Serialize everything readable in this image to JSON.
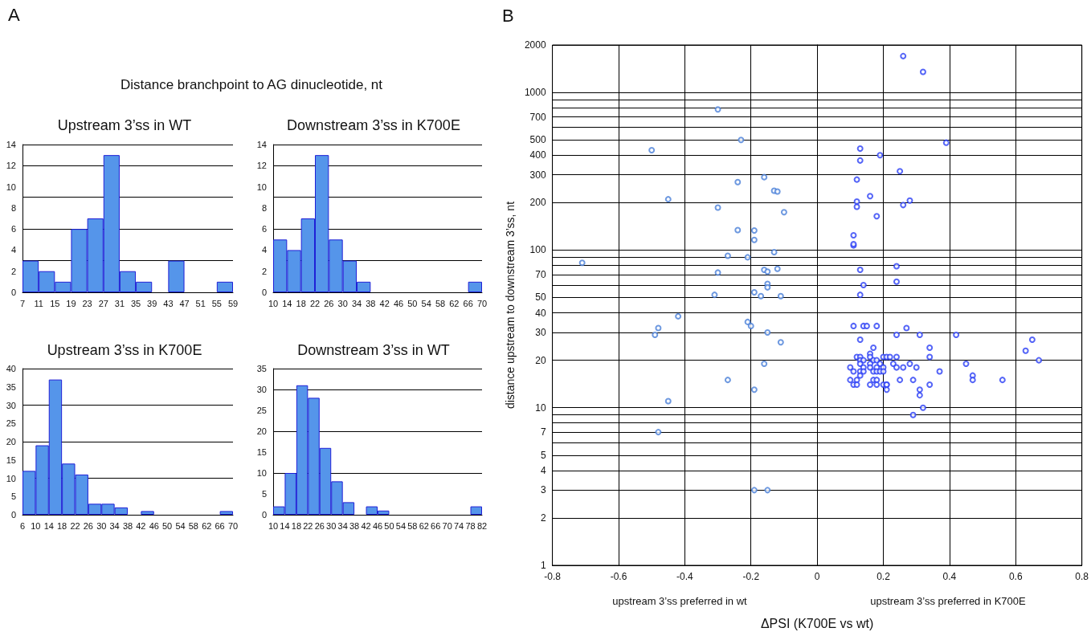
{
  "chart_data": [
    {
      "type": "histogram",
      "title": "Upstream 3’ss in WT",
      "annotations": [
        "A",
        "Distance branchpoint to AG dinucleotide, nt"
      ],
      "color": "#5595ea",
      "grid": "y",
      "bins": [
        7,
        11,
        15,
        19,
        23,
        27,
        31,
        35,
        39,
        43,
        47,
        51,
        55,
        59
      ],
      "values": [
        3,
        2,
        1,
        6,
        7,
        13,
        2,
        1,
        0,
        3,
        0,
        0,
        1
      ],
      "xlim": [
        7,
        59
      ],
      "xticks": [
        7,
        11,
        15,
        19,
        23,
        27,
        31,
        35,
        39,
        43,
        47,
        51,
        55,
        59
      ],
      "ylim": [
        0,
        14
      ],
      "yticks": [
        0,
        2,
        4,
        6,
        8,
        10,
        12,
        14
      ]
    },
    {
      "type": "histogram",
      "title": "Downstream 3’ss in K700E",
      "color": "#5595ea",
      "grid": "y",
      "bins": [
        10,
        14,
        18,
        22,
        26,
        30,
        34,
        38,
        42,
        46,
        50,
        54,
        58,
        62,
        66,
        70
      ],
      "values": [
        5,
        4,
        7,
        13,
        5,
        3,
        1,
        0,
        0,
        0,
        0,
        0,
        0,
        0,
        1
      ],
      "xlim": [
        10,
        70
      ],
      "xticks": [
        10,
        14,
        18,
        22,
        26,
        30,
        34,
        38,
        42,
        46,
        50,
        54,
        58,
        62,
        66,
        70
      ],
      "ylim": [
        0,
        14
      ],
      "yticks": [
        0,
        2,
        4,
        6,
        8,
        10,
        12,
        14
      ]
    },
    {
      "type": "histogram",
      "title": "Upstream 3’ss in K700E",
      "color": "#5595ea",
      "grid": "y",
      "bins": [
        6,
        10,
        14,
        18,
        22,
        26,
        30,
        34,
        38,
        42,
        46,
        50,
        54,
        58,
        62,
        66,
        70
      ],
      "values": [
        12,
        19,
        37,
        14,
        11,
        3,
        3,
        2,
        0,
        1,
        0,
        0,
        0,
        0,
        0,
        1
      ],
      "xlim": [
        6,
        70
      ],
      "xticks": [
        6,
        10,
        14,
        18,
        22,
        26,
        30,
        34,
        38,
        42,
        46,
        50,
        54,
        58,
        62,
        66,
        70
      ],
      "ylim": [
        0,
        40
      ],
      "yticks": [
        0,
        5,
        10,
        15,
        20,
        25,
        30,
        35,
        40
      ]
    },
    {
      "type": "histogram",
      "title": "Downstream 3’ss in WT",
      "color": "#5595ea",
      "grid": "y",
      "bins": [
        10,
        14,
        18,
        22,
        26,
        30,
        34,
        38,
        42,
        46,
        50,
        54,
        58,
        62,
        66,
        70,
        74,
        78,
        82
      ],
      "values": [
        2,
        10,
        31,
        28,
        16,
        8,
        3,
        0,
        2,
        1,
        0,
        0,
        0,
        0,
        0,
        0,
        0,
        2
      ],
      "xlim": [
        10,
        82
      ],
      "xticks": [
        10,
        14,
        18,
        22,
        26,
        30,
        34,
        38,
        42,
        46,
        50,
        54,
        58,
        62,
        66,
        70,
        74,
        78,
        82
      ],
      "ylim": [
        0,
        35
      ],
      "yticks": [
        0,
        5,
        10,
        15,
        20,
        25,
        30,
        35
      ]
    },
    {
      "type": "scatter",
      "xlabel": "ΔPSI (K700E vs wt)",
      "ylabel": "distance upstream to downstream 3’ss, nt",
      "annotations": [
        "B",
        "upstream 3’ss preferred in wt",
        "upstream 3’ss preferred in K700E"
      ],
      "grid": true,
      "log": "y",
      "marker": "circle",
      "xlim": [
        -0.8,
        0.8
      ],
      "xticks": [
        -0.8,
        -0.6,
        -0.4,
        -0.2,
        0,
        0.2,
        0.4,
        0.6,
        0.8
      ],
      "ylim": [
        1,
        2000
      ],
      "yticks": [
        1,
        2,
        3,
        4,
        5,
        {
          "value": 6,
          "label": null
        },
        7,
        {
          "value": 8,
          "label": null
        },
        {
          "value": 9,
          "label": null
        },
        10,
        20,
        30,
        40,
        50,
        {
          "value": 60,
          "label": null
        },
        70,
        {
          "value": 80,
          "label": null
        },
        {
          "value": 90,
          "label": null
        },
        100,
        200,
        300,
        400,
        500,
        {
          "value": 600,
          "label": null
        },
        700,
        {
          "value": 800,
          "label": null
        },
        {
          "value": 900,
          "label": null
        },
        1000,
        2000
      ],
      "series": [
        {
          "color": "#4a7fd8",
          "x": [
            -0.71,
            -0.3,
            -0.5,
            -0.23,
            -0.45,
            -0.16,
            -0.24,
            -0.13,
            -0.12,
            -0.3,
            -0.1,
            -0.24,
            -0.19,
            -0.19,
            -0.13,
            -0.27,
            -0.21,
            -0.16,
            -0.15,
            -0.12,
            -0.3,
            -0.15,
            -0.15,
            -0.31,
            -0.19,
            -0.17,
            -0.11,
            -0.49,
            -0.48,
            -0.42,
            -0.21,
            -0.2,
            -0.15,
            -0.11,
            -0.16,
            -0.27,
            -0.19,
            -0.45,
            -0.48,
            -0.19,
            -0.15
          ],
          "values": [
            83,
            780,
            430,
            500,
            210,
            290,
            270,
            238,
            235,
            186,
            174,
            134,
            133,
            116,
            97,
            92,
            90,
            75,
            73,
            76,
            72,
            61,
            58,
            52,
            54,
            51,
            51,
            29,
            32,
            38,
            35,
            33,
            30,
            26,
            19,
            15,
            13,
            11,
            7,
            3,
            3
          ]
        },
        {
          "color": "#2a3ff5",
          "x": [
            0.26,
            0.32,
            0.39,
            0.13,
            0.19,
            0.13,
            0.25,
            0.12,
            0.16,
            0.12,
            0.12,
            0.28,
            0.26,
            0.18,
            0.11,
            0.11,
            0.11,
            0.13,
            0.24,
            0.14,
            0.24,
            0.13,
            0.11,
            0.14,
            0.15,
            0.18,
            0.27,
            0.24,
            0.31,
            0.42,
            0.13,
            0.65,
            0.63,
            0.67,
            0.17,
            0.34,
            0.34,
            0.16,
            0.12,
            0.13,
            0.16,
            0.2,
            0.21,
            0.22,
            0.24,
            0.13,
            0.14,
            0.17,
            0.18,
            0.13,
            0.16,
            0.19,
            0.23,
            0.28,
            0.45,
            0.1,
            0.14,
            0.16,
            0.18,
            0.2,
            0.24,
            0.26,
            0.3,
            0.11,
            0.13,
            0.14,
            0.17,
            0.18,
            0.19,
            0.2,
            0.37,
            0.13,
            0.47,
            0.47,
            0.1,
            0.12,
            0.17,
            0.18,
            0.25,
            0.29,
            0.56,
            0.11,
            0.12,
            0.16,
            0.18,
            0.2,
            0.21,
            0.21,
            0.34,
            0.21,
            0.31,
            0.31,
            0.32,
            0.29
          ],
          "values": [
            1700,
            1350,
            480,
            440,
            400,
            370,
            316,
            280,
            220,
            203,
            188,
            206,
            193,
            164,
            124,
            107,
            109,
            75,
            79,
            60,
            63,
            52,
            33,
            33,
            33,
            33,
            32,
            29,
            29,
            29,
            27,
            27,
            23,
            20,
            24,
            24,
            21,
            22,
            21,
            21,
            21,
            21,
            21,
            21,
            21,
            20,
            20,
            20,
            20,
            19,
            19,
            19,
            19,
            19,
            19,
            18,
            18,
            18,
            18,
            18,
            18,
            18,
            18,
            17,
            17,
            17,
            17,
            17,
            17,
            17,
            17,
            16,
            16,
            15,
            15,
            15,
            15,
            15,
            15,
            15,
            15,
            14,
            14,
            14,
            14,
            14,
            14,
            14,
            14,
            13,
            13,
            12,
            10,
            9
          ]
        }
      ]
    }
  ]
}
